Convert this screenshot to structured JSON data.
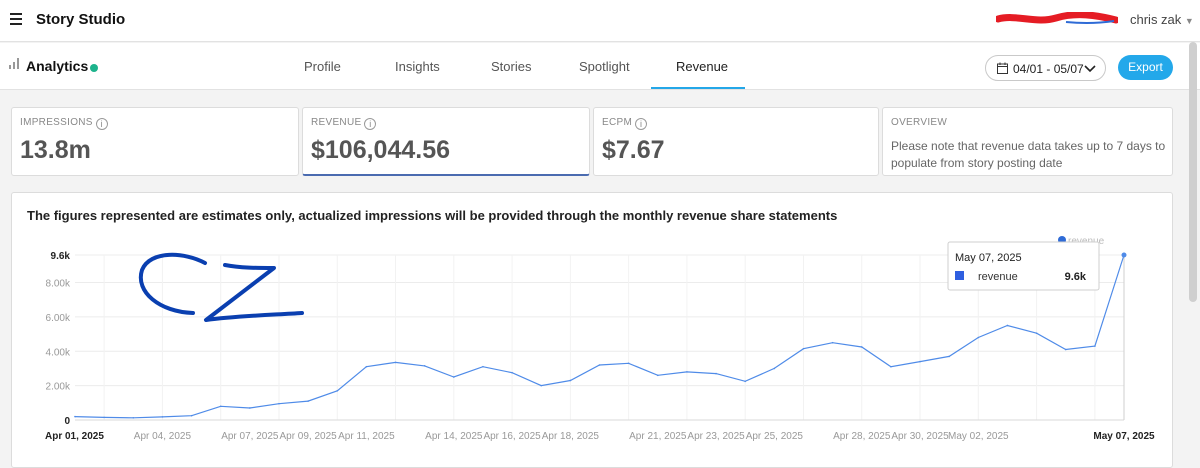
{
  "app": {
    "title": "Story Studio",
    "user": "chris zak"
  },
  "subnav": {
    "title": "Analytics",
    "tabs": [
      {
        "label": "Profile",
        "active": false
      },
      {
        "label": "Insights",
        "active": false
      },
      {
        "label": "Stories",
        "active": false
      },
      {
        "label": "Spotlight",
        "active": false
      },
      {
        "label": "Revenue",
        "active": true
      }
    ],
    "date_range": "04/01 - 05/07",
    "export_label": "Export"
  },
  "metrics": [
    {
      "label": "IMPRESSIONS",
      "value": "13.8m"
    },
    {
      "label": "REVENUE",
      "value": "$106,044.56"
    },
    {
      "label": "ECPM",
      "value": "$7.67"
    }
  ],
  "overview": {
    "label": "OVERVIEW",
    "text": "Please note that revenue data takes up to 7 days to populate from story posting date"
  },
  "chart_title": "The figures represented are estimates only, actualized impressions will be provided through the monthly revenue share statements",
  "tooltip": {
    "date": "May 07, 2025",
    "series": "revenue",
    "value": "9.6k"
  },
  "colors": {
    "accent": "#23a8ea",
    "line": "#4f8be8",
    "status_dot": "#1db38c"
  },
  "chart_data": {
    "type": "line",
    "title": "The figures represented are estimates only, actualized impressions will be provided through the monthly revenue share statements",
    "legend": [
      "revenue"
    ],
    "legend_position": "top-right",
    "y_ticks": [
      "0",
      "2.00k",
      "4.00k",
      "6.00k",
      "8.00k",
      "9.6k"
    ],
    "y_tick_values": [
      0,
      2000,
      4000,
      6000,
      8000,
      9600
    ],
    "ylim": [
      0,
      9600
    ],
    "x_labels": [
      "Apr 01, 2025",
      "Apr 04, 2025",
      "Apr 07, 2025",
      "Apr 09, 2025",
      "Apr 11, 2025",
      "Apr 14, 2025",
      "Apr 16, 2025",
      "Apr 18, 2025",
      "Apr 21, 2025",
      "Apr 23, 2025",
      "Apr 25, 2025",
      "Apr 28, 2025",
      "Apr 30, 2025",
      "May 02, 2025",
      "May 07, 2025"
    ],
    "x_label_days": [
      1,
      4,
      7,
      9,
      11,
      14,
      16,
      18,
      21,
      23,
      25,
      28,
      30,
      32,
      37
    ],
    "series": [
      {
        "name": "revenue",
        "values": [
          200,
          150,
          130,
          180,
          250,
          800,
          700,
          950,
          1100,
          1700,
          3100,
          3350,
          3150,
          2500,
          3100,
          2750,
          2000,
          2300,
          3200,
          3300,
          2600,
          2800,
          2700,
          2250,
          3000,
          4150,
          4500,
          4250,
          3100,
          3400,
          3700,
          4800,
          5500,
          5050,
          4100,
          4300,
          9600
        ]
      }
    ],
    "grid": true
  }
}
